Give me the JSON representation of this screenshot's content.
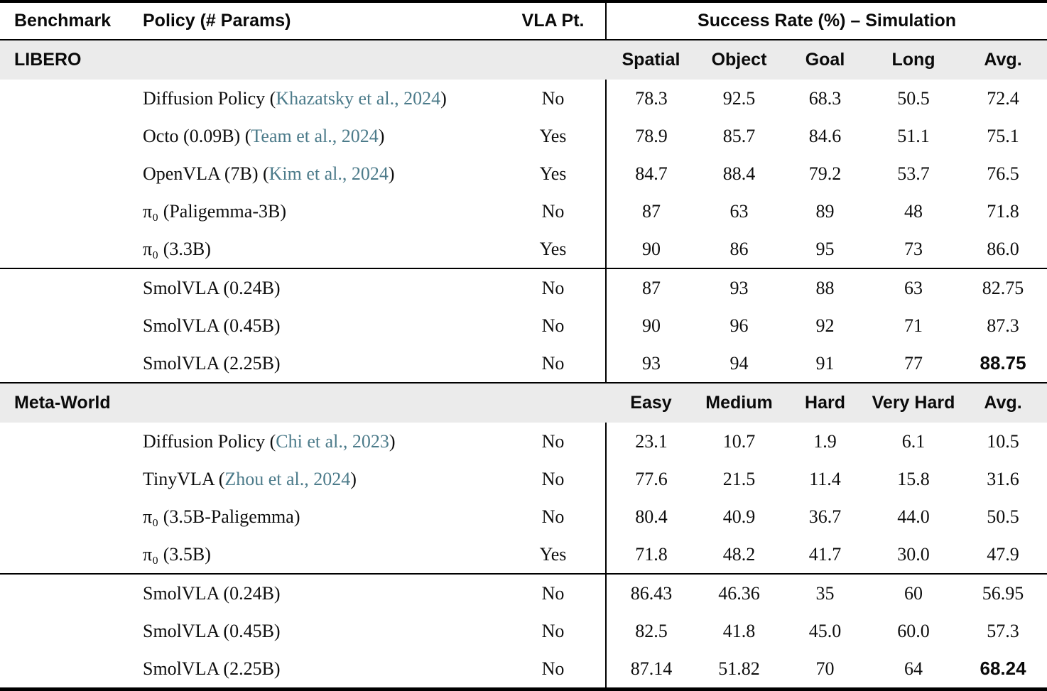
{
  "table": {
    "header": {
      "benchmark": "Benchmark",
      "policy": "Policy (# Params)",
      "vla_pt": "VLA Pt.",
      "success_rate": "Success Rate (%) – Simulation"
    },
    "colors": {
      "citation": "#4c7b8a",
      "section_bg": "#ebebeb",
      "rule": "#000000"
    },
    "sections": [
      {
        "name": "LIBERO",
        "columns": [
          "Spatial",
          "Object",
          "Goal",
          "Long",
          "Avg."
        ],
        "groups": [
          {
            "rows": [
              {
                "policy_prefix": "Diffusion Policy (",
                "citation": "Khazatsky et al., 2024",
                "policy_suffix": ")",
                "vla_pt": "No",
                "values": [
                  "78.3",
                  "92.5",
                  "68.3",
                  "50.5",
                  "72.4"
                ],
                "bold_avg": false
              },
              {
                "policy_prefix": "Octo (0.09B) (",
                "citation": "Team et al., 2024",
                "policy_suffix": ")",
                "vla_pt": "Yes",
                "values": [
                  "78.9",
                  "85.7",
                  "84.6",
                  "51.1",
                  "75.1"
                ],
                "bold_avg": false
              },
              {
                "policy_prefix": "OpenVLA (7B) (",
                "citation": "Kim et al., 2024",
                "policy_suffix": ")",
                "vla_pt": "Yes",
                "values": [
                  "84.7",
                  "88.4",
                  "79.2",
                  "53.7",
                  "76.5"
                ],
                "bold_avg": false
              },
              {
                "policy_prefix": "π₀ (Paligemma-3B)",
                "citation": "",
                "policy_suffix": "",
                "vla_pt": "No",
                "values": [
                  "87",
                  "63",
                  "89",
                  "48",
                  "71.8"
                ],
                "bold_avg": false
              },
              {
                "policy_prefix": "π₀ (3.3B)",
                "citation": "",
                "policy_suffix": "",
                "vla_pt": "Yes",
                "values": [
                  "90",
                  "86",
                  "95",
                  "73",
                  "86.0"
                ],
                "bold_avg": false
              }
            ]
          },
          {
            "rows": [
              {
                "policy_prefix": "SmolVLA (0.24B)",
                "citation": "",
                "policy_suffix": "",
                "vla_pt": "No",
                "values": [
                  "87",
                  "93",
                  "88",
                  "63",
                  "82.75"
                ],
                "bold_avg": false
              },
              {
                "policy_prefix": "SmolVLA (0.45B)",
                "citation": "",
                "policy_suffix": "",
                "vla_pt": "No",
                "values": [
                  "90",
                  "96",
                  "92",
                  "71",
                  "87.3"
                ],
                "bold_avg": false
              },
              {
                "policy_prefix": "SmolVLA (2.25B)",
                "citation": "",
                "policy_suffix": "",
                "vla_pt": "No",
                "values": [
                  "93",
                  "94",
                  "91",
                  "77",
                  "88.75"
                ],
                "bold_avg": true
              }
            ]
          }
        ]
      },
      {
        "name": "Meta-World",
        "columns": [
          "Easy",
          "Medium",
          "Hard",
          "Very Hard",
          "Avg."
        ],
        "groups": [
          {
            "rows": [
              {
                "policy_prefix": "Diffusion Policy (",
                "citation": "Chi et al., 2023",
                "policy_suffix": ")",
                "vla_pt": "No",
                "values": [
                  "23.1",
                  "10.7",
                  "1.9",
                  "6.1",
                  "10.5"
                ],
                "bold_avg": false
              },
              {
                "policy_prefix": "TinyVLA (",
                "citation": "Zhou et al., 2024",
                "policy_suffix": ")",
                "vla_pt": "No",
                "values": [
                  "77.6",
                  "21.5",
                  "11.4",
                  "15.8",
                  "31.6"
                ],
                "bold_avg": false
              },
              {
                "policy_prefix": "π₀ (3.5B-Paligemma)",
                "citation": "",
                "policy_suffix": "",
                "vla_pt": "No",
                "values": [
                  "80.4",
                  "40.9",
                  "36.7",
                  "44.0",
                  "50.5"
                ],
                "bold_avg": false
              },
              {
                "policy_prefix": "π₀ (3.5B)",
                "citation": "",
                "policy_suffix": "",
                "vla_pt": "Yes",
                "values": [
                  "71.8",
                  "48.2",
                  "41.7",
                  "30.0",
                  "47.9"
                ],
                "bold_avg": false
              }
            ]
          },
          {
            "rows": [
              {
                "policy_prefix": "SmolVLA (0.24B)",
                "citation": "",
                "policy_suffix": "",
                "vla_pt": "No",
                "values": [
                  "86.43",
                  "46.36",
                  "35",
                  "60",
                  "56.95"
                ],
                "bold_avg": false
              },
              {
                "policy_prefix": "SmolVLA (0.45B)",
                "citation": "",
                "policy_suffix": "",
                "vla_pt": "No",
                "values": [
                  "82.5",
                  "41.8",
                  "45.0",
                  "60.0",
                  "57.3"
                ],
                "bold_avg": false
              },
              {
                "policy_prefix": "SmolVLA (2.25B)",
                "citation": "",
                "policy_suffix": "",
                "vla_pt": "No",
                "values": [
                  "87.14",
                  "51.82",
                  "70",
                  "64",
                  "68.24"
                ],
                "bold_avg": true
              }
            ]
          }
        ]
      }
    ]
  }
}
